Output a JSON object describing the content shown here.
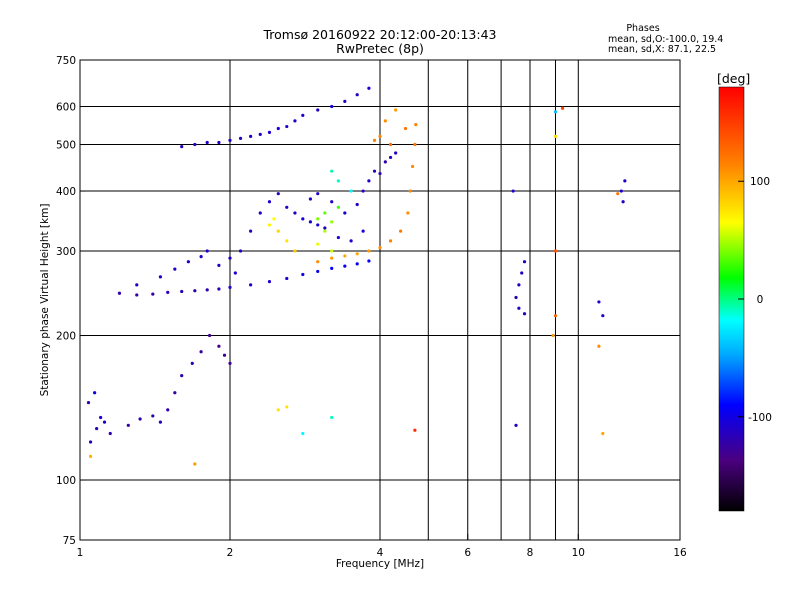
{
  "chart_data": {
    "type": "scatter",
    "title": "Tromsø 20160922 20:12:00-20:13:43",
    "subtitle": "RwPretec (8p)",
    "xlabel": "Frequency [MHz]",
    "ylabel": "Stationary phase Virtual Height [km]",
    "x_scale": "log2",
    "y_scale": "log",
    "xlim": [
      1,
      16
    ],
    "ylim": [
      75,
      750
    ],
    "x_major_ticks": [
      1,
      2,
      4,
      8,
      16
    ],
    "x_minor_ticks": [
      6,
      10
    ],
    "x_tick_labels": [
      "1",
      "2",
      "4",
      "6",
      "8",
      "10",
      "16"
    ],
    "x_grid": [
      2,
      4,
      5,
      6,
      7,
      8,
      9,
      10
    ],
    "y_ticks": [
      75,
      100,
      200,
      300,
      400,
      500,
      600,
      750
    ],
    "y_grid": [
      100,
      200,
      300,
      400,
      500,
      600
    ],
    "grid": true,
    "stats": {
      "heading": "Phases",
      "line_o": "mean, sd,O:-100.0, 19.4",
      "line_x": "mean, sd,X:  87.1, 22.5"
    },
    "colorbar": {
      "label": "[deg]",
      "range": [
        -180,
        180
      ],
      "ticks": [
        100,
        0,
        -100
      ],
      "tick_labels": [
        "100",
        "0",
        "-100"
      ]
    },
    "series": [
      {
        "points": [
          [
            1.05,
            120,
            -110
          ],
          [
            1.08,
            128,
            -115
          ],
          [
            1.1,
            135,
            -105
          ],
          [
            1.04,
            145,
            -120
          ],
          [
            1.07,
            152,
            -100
          ],
          [
            1.12,
            132,
            -110
          ],
          [
            1.15,
            125,
            -118
          ],
          [
            1.25,
            130,
            -125
          ],
          [
            1.32,
            134,
            -120
          ],
          [
            1.4,
            136,
            -118
          ],
          [
            1.5,
            140,
            -120
          ],
          [
            1.55,
            152,
            -125
          ],
          [
            1.6,
            165,
            -120
          ],
          [
            1.68,
            175,
            -118
          ],
          [
            1.75,
            185,
            -125
          ],
          [
            1.82,
            200,
            -130
          ],
          [
            1.9,
            190,
            -135
          ],
          [
            1.95,
            182,
            -130
          ],
          [
            2.0,
            175,
            -130
          ],
          [
            1.45,
            132,
            -115
          ],
          [
            1.2,
            245,
            -120
          ],
          [
            1.3,
            243,
            -125
          ],
          [
            1.4,
            244,
            -120
          ],
          [
            1.5,
            246,
            -118
          ],
          [
            1.6,
            247,
            -115
          ],
          [
            1.7,
            248,
            -120
          ],
          [
            1.8,
            249,
            -118
          ],
          [
            1.9,
            250,
            -115
          ],
          [
            2.0,
            252,
            -112
          ],
          [
            2.2,
            255,
            -110
          ],
          [
            2.4,
            259,
            -108
          ],
          [
            2.6,
            263,
            -105
          ],
          [
            2.8,
            268,
            -100
          ],
          [
            3.0,
            272,
            -95
          ],
          [
            3.2,
            276,
            -90
          ],
          [
            3.4,
            279,
            -95
          ],
          [
            3.6,
            282,
            -90
          ],
          [
            3.8,
            286,
            -92
          ],
          [
            1.3,
            255,
            -110
          ],
          [
            1.45,
            265,
            -110
          ],
          [
            1.55,
            275,
            -112
          ],
          [
            1.65,
            285,
            -108
          ],
          [
            1.75,
            292,
            -105
          ],
          [
            1.8,
            300,
            -110
          ],
          [
            1.9,
            280,
            -112
          ],
          [
            2.0,
            290,
            -110
          ],
          [
            2.05,
            270,
            -108
          ],
          [
            2.1,
            300,
            -110
          ],
          [
            2.2,
            330,
            -115
          ],
          [
            2.3,
            360,
            -112
          ],
          [
            2.4,
            380,
            -110
          ],
          [
            2.5,
            395,
            -110
          ],
          [
            2.6,
            370,
            -108
          ],
          [
            2.7,
            360,
            -110
          ],
          [
            2.8,
            350,
            -105
          ],
          [
            2.9,
            345,
            -108
          ],
          [
            3.0,
            340,
            -105
          ],
          [
            3.1,
            335,
            -110
          ],
          [
            3.3,
            320,
            -105
          ],
          [
            3.5,
            315,
            -110
          ],
          [
            3.7,
            330,
            -105
          ],
          [
            2.9,
            385,
            -110
          ],
          [
            3.0,
            395,
            -110
          ],
          [
            3.2,
            380,
            -112
          ],
          [
            3.4,
            360,
            -108
          ],
          [
            3.6,
            375,
            -110
          ],
          [
            3.7,
            400,
            -110
          ],
          [
            3.8,
            420,
            -112
          ],
          [
            3.9,
            440,
            -115
          ],
          [
            1.6,
            495,
            -110
          ],
          [
            1.7,
            500,
            -112
          ],
          [
            1.8,
            505,
            -110
          ],
          [
            1.9,
            505,
            -108
          ],
          [
            2.0,
            510,
            -110
          ],
          [
            2.1,
            515,
            -112
          ],
          [
            2.2,
            520,
            -110
          ],
          [
            2.3,
            525,
            -108
          ],
          [
            2.4,
            530,
            -110
          ],
          [
            2.5,
            540,
            -105
          ],
          [
            2.6,
            545,
            -110
          ],
          [
            2.7,
            560,
            -110
          ],
          [
            2.8,
            575,
            -108
          ],
          [
            3.0,
            590,
            -110
          ],
          [
            3.2,
            600,
            -105
          ],
          [
            3.4,
            615,
            -110
          ],
          [
            3.6,
            635,
            -110
          ],
          [
            3.8,
            655,
            -105
          ],
          [
            4.0,
            435,
            -120
          ],
          [
            4.1,
            460,
            -118
          ],
          [
            4.2,
            470,
            -110
          ],
          [
            4.3,
            480,
            -112
          ],
          [
            7.5,
            240,
            -115
          ],
          [
            7.6,
            255,
            -110
          ],
          [
            7.7,
            270,
            -112
          ],
          [
            7.8,
            285,
            -110
          ],
          [
            7.4,
            400,
            -110
          ],
          [
            7.6,
            228,
            -115
          ],
          [
            7.8,
            222,
            -112
          ],
          [
            11.0,
            235,
            -110
          ],
          [
            11.2,
            220,
            -112
          ],
          [
            12.2,
            400,
            -110
          ],
          [
            12.3,
            380,
            -112
          ],
          [
            12.4,
            420,
            -110
          ],
          [
            7.5,
            130,
            -110
          ]
        ]
      },
      {
        "points": [
          [
            3.0,
            285,
            110
          ],
          [
            3.2,
            290,
            105
          ],
          [
            3.4,
            293,
            100
          ],
          [
            3.6,
            296,
            100
          ],
          [
            3.8,
            300,
            105
          ],
          [
            4.0,
            305,
            110
          ],
          [
            4.2,
            315,
            115
          ],
          [
            4.4,
            330,
            120
          ],
          [
            4.55,
            360,
            110
          ],
          [
            4.6,
            400,
            115
          ],
          [
            4.65,
            450,
            110
          ],
          [
            4.7,
            500,
            120
          ],
          [
            4.72,
            550,
            115
          ],
          [
            4.1,
            560,
            110
          ],
          [
            4.3,
            590,
            105
          ],
          [
            4.5,
            540,
            120
          ],
          [
            4.0,
            520,
            115
          ],
          [
            4.2,
            500,
            125
          ],
          [
            3.9,
            510,
            115
          ],
          [
            3.0,
            350,
            40
          ],
          [
            3.1,
            360,
            35
          ],
          [
            3.2,
            345,
            45
          ],
          [
            3.1,
            330,
            50
          ],
          [
            3.0,
            310,
            60
          ],
          [
            3.2,
            300,
            55
          ],
          [
            3.3,
            370,
            30
          ],
          [
            2.4,
            340,
            70
          ],
          [
            2.5,
            330,
            80
          ],
          [
            2.6,
            315,
            75
          ],
          [
            2.7,
            300,
            85
          ],
          [
            2.45,
            350,
            65
          ],
          [
            3.5,
            400,
            -20
          ],
          [
            3.3,
            420,
            -10
          ],
          [
            3.2,
            440,
            -5
          ],
          [
            2.5,
            140,
            75
          ],
          [
            2.6,
            142,
            75
          ],
          [
            2.8,
            125,
            -20
          ],
          [
            3.2,
            135,
            -10
          ],
          [
            1.05,
            112,
            95
          ],
          [
            1.7,
            108,
            105
          ],
          [
            4.7,
            127,
            160
          ],
          [
            9.0,
            585,
            -40
          ],
          [
            9.0,
            520,
            80
          ],
          [
            9.3,
            595,
            150
          ],
          [
            12.0,
            395,
            120
          ],
          [
            11.0,
            190,
            110
          ],
          [
            11.2,
            125,
            100
          ],
          [
            9.0,
            300,
            140
          ],
          [
            9.0,
            220,
            130
          ],
          [
            8.9,
            200,
            105
          ]
        ]
      }
    ]
  }
}
